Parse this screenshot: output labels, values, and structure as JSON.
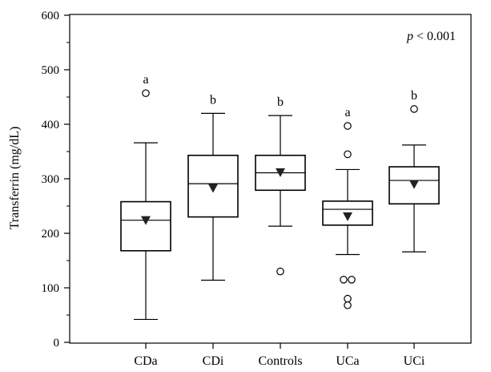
{
  "chart_data": {
    "type": "boxplot",
    "title": "",
    "xlabel": "",
    "ylabel": "Transferrin (mg/dL)",
    "ylim": [
      0,
      600
    ],
    "yticks": [
      0,
      100,
      200,
      300,
      400,
      500,
      600
    ],
    "grid": false,
    "annotation": {
      "italic": "p",
      "text": " < 0.001"
    },
    "categories": [
      "CDa",
      "CDi",
      "Controls",
      "UCa",
      "UCi"
    ],
    "boxes": [
      {
        "category": "CDa",
        "whisker_low": 42,
        "q1": 168,
        "median": 224,
        "q3": 258,
        "whisker_high": 366,
        "mean": 224,
        "outliers": [
          457
        ],
        "letter": "a"
      },
      {
        "category": "CDi",
        "whisker_low": 114,
        "q1": 230,
        "median": 291,
        "q3": 343,
        "whisker_high": 420,
        "mean": 283,
        "outliers": [],
        "letter": "b"
      },
      {
        "category": "Controls",
        "whisker_low": 213,
        "q1": 279,
        "median": 311,
        "q3": 343,
        "whisker_high": 416,
        "mean": 312,
        "outliers": [
          130
        ],
        "letter": "b"
      },
      {
        "category": "UCa",
        "whisker_low": 161,
        "q1": 215,
        "median": 244,
        "q3": 259,
        "whisker_high": 317,
        "mean": 231,
        "outliers": [
          397,
          345,
          115,
          115,
          80,
          68
        ],
        "letter": "a"
      },
      {
        "category": "UCi",
        "whisker_low": 166,
        "q1": 254,
        "median": 297,
        "q3": 322,
        "whisker_high": 362,
        "mean": 290,
        "outliers": [
          428
        ],
        "letter": "b"
      }
    ]
  }
}
